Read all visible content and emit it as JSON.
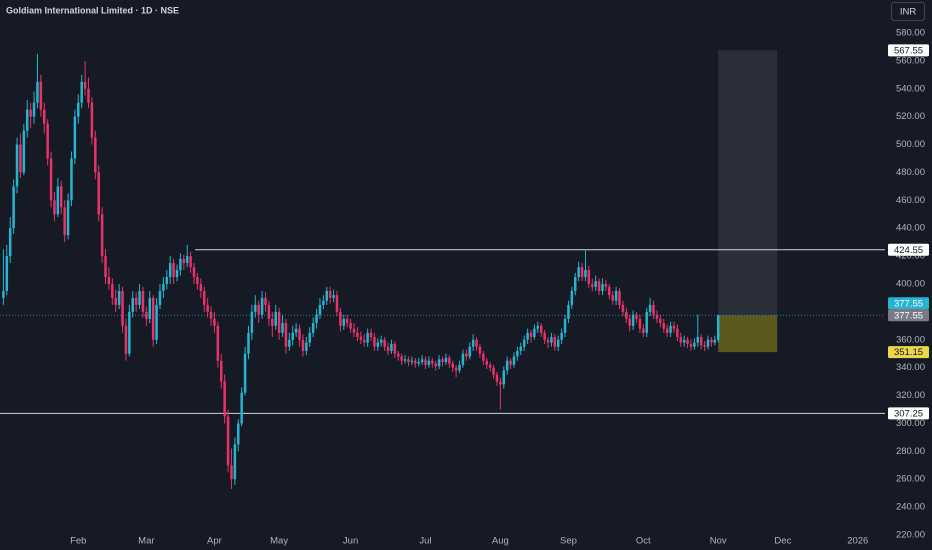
{
  "chart_data": {
    "type": "candlestick",
    "title": "Goldiam International Limited · 1D · NSE",
    "currency": "INR",
    "up_color": "#26b4cf",
    "down_color": "#e8336a",
    "ylim": [
      220,
      580
    ],
    "yticks": [
      {
        "value": 220,
        "label": "220.00"
      },
      {
        "value": 240,
        "label": "240.00"
      },
      {
        "value": 260,
        "label": "260.00"
      },
      {
        "value": 280,
        "label": "280.00"
      },
      {
        "value": 300,
        "label": "300.00"
      },
      {
        "value": 320,
        "label": "320.00"
      },
      {
        "value": 340,
        "label": "340.00"
      },
      {
        "value": 360,
        "label": "360.00"
      },
      {
        "value": 380,
        "label": "380.00"
      },
      {
        "value": 400,
        "label": "400.00"
      },
      {
        "value": 420,
        "label": "420.00"
      },
      {
        "value": 440,
        "label": "440.00"
      },
      {
        "value": 460,
        "label": "460.00"
      },
      {
        "value": 480,
        "label": "480.00"
      },
      {
        "value": 500,
        "label": "500.00"
      },
      {
        "value": 520,
        "label": "520.00"
      },
      {
        "value": 540,
        "label": "540.00"
      },
      {
        "value": 560,
        "label": "560.00"
      },
      {
        "value": 580,
        "label": "580.00"
      }
    ],
    "xlim": [
      -1,
      259
    ],
    "xticks": [
      {
        "value": 22,
        "label": "Feb"
      },
      {
        "value": 42,
        "label": "Mar"
      },
      {
        "value": 62,
        "label": "Apr"
      },
      {
        "value": 81,
        "label": "May"
      },
      {
        "value": 102,
        "label": "Jun"
      },
      {
        "value": 124,
        "label": "Jul"
      },
      {
        "value": 146,
        "label": "Aug"
      },
      {
        "value": 166,
        "label": "Sep"
      },
      {
        "value": 188,
        "label": "Oct"
      },
      {
        "value": 210,
        "label": "Nov"
      },
      {
        "value": 229,
        "label": "Dec"
      },
      {
        "value": 251,
        "label": "2026"
      }
    ],
    "levels": [
      {
        "value": 424.55,
        "label": "424.55"
      },
      {
        "value": 307.25,
        "label": "307.25"
      }
    ],
    "range_box": {
      "high": {
        "value": 567.55,
        "label": "567.55"
      },
      "entry": {
        "value": 377.55,
        "label": "377.55"
      },
      "low": {
        "value": 351.15,
        "label": "351.15"
      }
    },
    "candles": [
      [
        390,
        425,
        385,
        395
      ],
      [
        395,
        428,
        392,
        420
      ],
      [
        420,
        448,
        415,
        440
      ],
      [
        440,
        475,
        436,
        470
      ],
      [
        470,
        505,
        465,
        500
      ],
      [
        500,
        508,
        476,
        480
      ],
      [
        480,
        515,
        478,
        510
      ],
      [
        510,
        532,
        505,
        525
      ],
      [
        525,
        530,
        512,
        520
      ],
      [
        520,
        538,
        515,
        530
      ],
      [
        530,
        565,
        526,
        545
      ],
      [
        545,
        550,
        520,
        525
      ],
      [
        525,
        530,
        508,
        515
      ],
      [
        515,
        518,
        485,
        490
      ],
      [
        490,
        495,
        455,
        460
      ],
      [
        460,
        466,
        445,
        450
      ],
      [
        450,
        476,
        448,
        470
      ],
      [
        470,
        474,
        450,
        455
      ],
      [
        455,
        460,
        430,
        435
      ],
      [
        435,
        465,
        432,
        460
      ],
      [
        460,
        495,
        456,
        490
      ],
      [
        490,
        525,
        486,
        520
      ],
      [
        520,
        536,
        515,
        530
      ],
      [
        530,
        550,
        526,
        545
      ],
      [
        545,
        560,
        535,
        540
      ],
      [
        540,
        548,
        526,
        530
      ],
      [
        530,
        534,
        500,
        505
      ],
      [
        505,
        510,
        475,
        480
      ],
      [
        480,
        485,
        445,
        450
      ],
      [
        450,
        455,
        415,
        420
      ],
      [
        420,
        425,
        400,
        405
      ],
      [
        405,
        412,
        396,
        400
      ],
      [
        400,
        404,
        385,
        390
      ],
      [
        390,
        396,
        380,
        385
      ],
      [
        385,
        400,
        382,
        395
      ],
      [
        395,
        398,
        365,
        370
      ],
      [
        370,
        375,
        345,
        350
      ],
      [
        350,
        385,
        348,
        380
      ],
      [
        380,
        395,
        376,
        390
      ],
      [
        390,
        394,
        380,
        385
      ],
      [
        385,
        400,
        382,
        395
      ],
      [
        395,
        398,
        376,
        380
      ],
      [
        380,
        384,
        370,
        375
      ],
      [
        375,
        395,
        372,
        390
      ],
      [
        390,
        392,
        355,
        360
      ],
      [
        360,
        390,
        357,
        385
      ],
      [
        385,
        400,
        382,
        395
      ],
      [
        395,
        405,
        390,
        400
      ],
      [
        400,
        410,
        396,
        405
      ],
      [
        405,
        420,
        400,
        415
      ],
      [
        415,
        418,
        400,
        405
      ],
      [
        405,
        414,
        402,
        410
      ],
      [
        410,
        422,
        406,
        418
      ],
      [
        418,
        421,
        410,
        415
      ],
      [
        415,
        428,
        412,
        420
      ],
      [
        420,
        423,
        408,
        412
      ],
      [
        412,
        415,
        400,
        405
      ],
      [
        405,
        408,
        396,
        400
      ],
      [
        400,
        404,
        390,
        395
      ],
      [
        395,
        398,
        380,
        385
      ],
      [
        385,
        390,
        376,
        380
      ],
      [
        380,
        384,
        370,
        375
      ],
      [
        375,
        380,
        365,
        370
      ],
      [
        370,
        373,
        340,
        345
      ],
      [
        345,
        350,
        325,
        330
      ],
      [
        330,
        335,
        300,
        305
      ],
      [
        305,
        310,
        265,
        270
      ],
      [
        270,
        282,
        253,
        260
      ],
      [
        260,
        290,
        256,
        285
      ],
      [
        285,
        303,
        280,
        300
      ],
      [
        300,
        326,
        298,
        322
      ],
      [
        322,
        355,
        320,
        350
      ],
      [
        350,
        370,
        346,
        365
      ],
      [
        365,
        385,
        360,
        380
      ],
      [
        380,
        392,
        376,
        385
      ],
      [
        385,
        388,
        372,
        378
      ],
      [
        378,
        395,
        375,
        390
      ],
      [
        390,
        394,
        380,
        385
      ],
      [
        385,
        388,
        370,
        375
      ],
      [
        375,
        380,
        362,
        370
      ],
      [
        370,
        385,
        367,
        380
      ],
      [
        380,
        383,
        360,
        365
      ],
      [
        365,
        378,
        362,
        372
      ],
      [
        372,
        375,
        350,
        355
      ],
      [
        355,
        365,
        352,
        360
      ],
      [
        360,
        370,
        356,
        365
      ],
      [
        365,
        372,
        362,
        368
      ],
      [
        368,
        371,
        355,
        360
      ],
      [
        360,
        364,
        348,
        352
      ],
      [
        352,
        362,
        349,
        358
      ],
      [
        358,
        369,
        355,
        365
      ],
      [
        365,
        376,
        362,
        372
      ],
      [
        372,
        382,
        368,
        378
      ],
      [
        378,
        390,
        375,
        385
      ],
      [
        385,
        392,
        382,
        388
      ],
      [
        388,
        398,
        385,
        395
      ],
      [
        395,
        398,
        386,
        390
      ],
      [
        390,
        396,
        387,
        392
      ],
      [
        392,
        395,
        377,
        380
      ],
      [
        380,
        383,
        366,
        370
      ],
      [
        370,
        378,
        367,
        375
      ],
      [
        375,
        378,
        369,
        372
      ],
      [
        372,
        375,
        365,
        368
      ],
      [
        368,
        372,
        362,
        365
      ],
      [
        365,
        369,
        359,
        362
      ],
      [
        362,
        366,
        357,
        360
      ],
      [
        360,
        364,
        355,
        358
      ],
      [
        358,
        368,
        355,
        365
      ],
      [
        365,
        368,
        359,
        362
      ],
      [
        362,
        365,
        352,
        355
      ],
      [
        355,
        361,
        352,
        358
      ],
      [
        358,
        363,
        355,
        360
      ],
      [
        360,
        362,
        352,
        355
      ],
      [
        355,
        358,
        349,
        352
      ],
      [
        352,
        360,
        350,
        357
      ],
      [
        357,
        359,
        347,
        350
      ],
      [
        350,
        352,
        345,
        348
      ],
      [
        348,
        350,
        342,
        345
      ],
      [
        345,
        349,
        343,
        346
      ],
      [
        346,
        348,
        341,
        344
      ],
      [
        344,
        348,
        342,
        345
      ],
      [
        345,
        347,
        340,
        343
      ],
      [
        343,
        347,
        341,
        344
      ],
      [
        344,
        349,
        342,
        346
      ],
      [
        346,
        348,
        339,
        342
      ],
      [
        342,
        348,
        340,
        345
      ],
      [
        345,
        347,
        340,
        343
      ],
      [
        343,
        345,
        338,
        341
      ],
      [
        341,
        349,
        339,
        346
      ],
      [
        346,
        348,
        341,
        344
      ],
      [
        344,
        350,
        342,
        347
      ],
      [
        347,
        349,
        340,
        343
      ],
      [
        343,
        345,
        337,
        340
      ],
      [
        340,
        342,
        333,
        338
      ],
      [
        338,
        345,
        336,
        342
      ],
      [
        342,
        353,
        340,
        350
      ],
      [
        350,
        353,
        345,
        348
      ],
      [
        348,
        358,
        346,
        355
      ],
      [
        355,
        364,
        352,
        360
      ],
      [
        360,
        362,
        352,
        355
      ],
      [
        355,
        357,
        347,
        350
      ],
      [
        350,
        352,
        342,
        345
      ],
      [
        345,
        347,
        339,
        342
      ],
      [
        342,
        344,
        337,
        340
      ],
      [
        340,
        342,
        332,
        335
      ],
      [
        335,
        337,
        327,
        330
      ],
      [
        330,
        333,
        310,
        328
      ],
      [
        328,
        341,
        325,
        338
      ],
      [
        338,
        348,
        335,
        345
      ],
      [
        345,
        347,
        339,
        342
      ],
      [
        342,
        351,
        340,
        348
      ],
      [
        348,
        355,
        345,
        352
      ],
      [
        352,
        358,
        349,
        355
      ],
      [
        355,
        363,
        352,
        360
      ],
      [
        360,
        368,
        357,
        365
      ],
      [
        365,
        367,
        358,
        362
      ],
      [
        362,
        371,
        360,
        368
      ],
      [
        368,
        373,
        365,
        370
      ],
      [
        370,
        372,
        362,
        365
      ],
      [
        365,
        367,
        357,
        360
      ],
      [
        360,
        362,
        354,
        358
      ],
      [
        358,
        365,
        355,
        362
      ],
      [
        362,
        364,
        352,
        355
      ],
      [
        355,
        363,
        352,
        360
      ],
      [
        360,
        368,
        357,
        365
      ],
      [
        365,
        378,
        362,
        375
      ],
      [
        375,
        388,
        372,
        385
      ],
      [
        385,
        398,
        382,
        395
      ],
      [
        395,
        408,
        392,
        405
      ],
      [
        405,
        416,
        402,
        412
      ],
      [
        412,
        415,
        402,
        405
      ],
      [
        405,
        424,
        402,
        410
      ],
      [
        410,
        413,
        397,
        400
      ],
      [
        400,
        404,
        395,
        398
      ],
      [
        398,
        406,
        395,
        402
      ],
      [
        402,
        404,
        392,
        395
      ],
      [
        395,
        404,
        392,
        400
      ],
      [
        400,
        403,
        395,
        398
      ],
      [
        398,
        400,
        389,
        392
      ],
      [
        392,
        395,
        385,
        388
      ],
      [
        388,
        398,
        385,
        395
      ],
      [
        395,
        397,
        382,
        385
      ],
      [
        385,
        388,
        377,
        380
      ],
      [
        380,
        383,
        372,
        375
      ],
      [
        375,
        378,
        366,
        370
      ],
      [
        370,
        381,
        367,
        378
      ],
      [
        378,
        380,
        372,
        375
      ],
      [
        375,
        378,
        365,
        368
      ],
      [
        368,
        371,
        362,
        365
      ],
      [
        365,
        383,
        362,
        380
      ],
      [
        380,
        390,
        377,
        385
      ],
      [
        385,
        388,
        375,
        378
      ],
      [
        378,
        381,
        372,
        375
      ],
      [
        375,
        378,
        369,
        372
      ],
      [
        372,
        375,
        365,
        368
      ],
      [
        368,
        371,
        362,
        365
      ],
      [
        365,
        373,
        362,
        370
      ],
      [
        370,
        373,
        365,
        368
      ],
      [
        368,
        371,
        359,
        362
      ],
      [
        362,
        365,
        355,
        358
      ],
      [
        358,
        363,
        355,
        360
      ],
      [
        360,
        362,
        354,
        357
      ],
      [
        357,
        360,
        352,
        355
      ],
      [
        355,
        361,
        353,
        358
      ],
      [
        358,
        378,
        355,
        362
      ],
      [
        362,
        364,
        353,
        356
      ],
      [
        356,
        359,
        352,
        355
      ],
      [
        355,
        363,
        353,
        360
      ],
      [
        360,
        362,
        355,
        358
      ],
      [
        358,
        363,
        356,
        360
      ],
      [
        360,
        378,
        358,
        377.55
      ]
    ]
  }
}
